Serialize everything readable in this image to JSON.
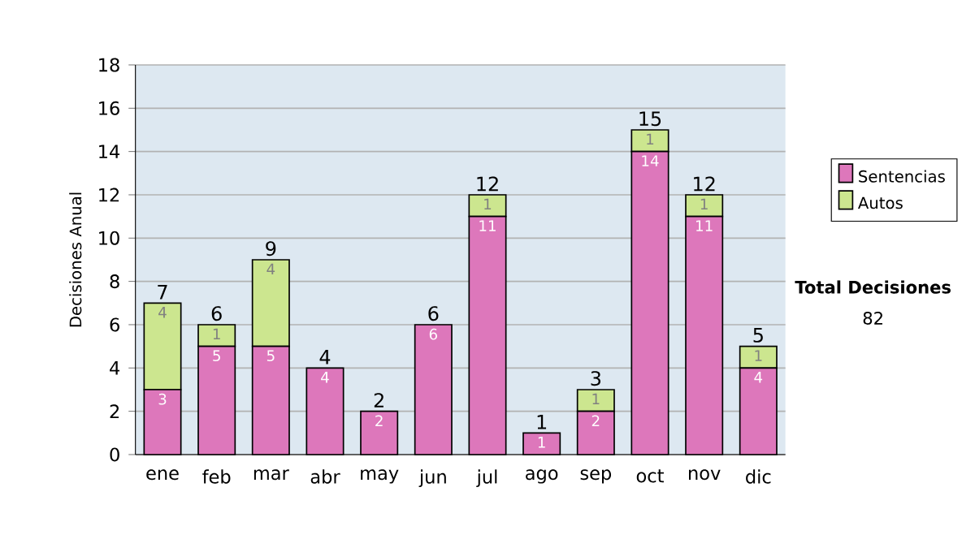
{
  "chart_data": {
    "type": "bar",
    "stacked": true,
    "ylabel": "Decisiones Anual",
    "categories": [
      "ene",
      "feb",
      "mar",
      "abr",
      "may",
      "jun",
      "jul",
      "ago",
      "sep",
      "oct",
      "nov",
      "dic"
    ],
    "series": [
      {
        "name": "Sentencias",
        "color": "#dd77bb",
        "values": [
          3,
          5,
          5,
          4,
          2,
          6,
          11,
          1,
          2,
          14,
          11,
          4
        ],
        "value_labels": [
          "3",
          "5",
          "5",
          "4",
          "2",
          "6",
          "11",
          "1",
          "2",
          "14",
          "11",
          "4"
        ]
      },
      {
        "name": "Autos",
        "color": "#cce68f",
        "values": [
          4,
          1,
          4,
          0,
          0,
          0,
          1,
          0,
          1,
          1,
          1,
          1
        ],
        "value_labels": [
          "4",
          "1",
          "4",
          null,
          null,
          null,
          "1",
          null,
          "1",
          "1",
          "1",
          "1"
        ]
      }
    ],
    "totals": [
      "7",
      "6",
      "9",
      "4",
      "2",
      "6",
      "12",
      "1",
      "3",
      "15",
      "12",
      "5"
    ],
    "ylim": [
      0,
      18
    ],
    "yticks": [
      0,
      2,
      4,
      6,
      8,
      10,
      12,
      14,
      16,
      18
    ],
    "grid": "y",
    "legend": "right",
    "annotations": [
      "Total Decisiones",
      "82"
    ]
  }
}
